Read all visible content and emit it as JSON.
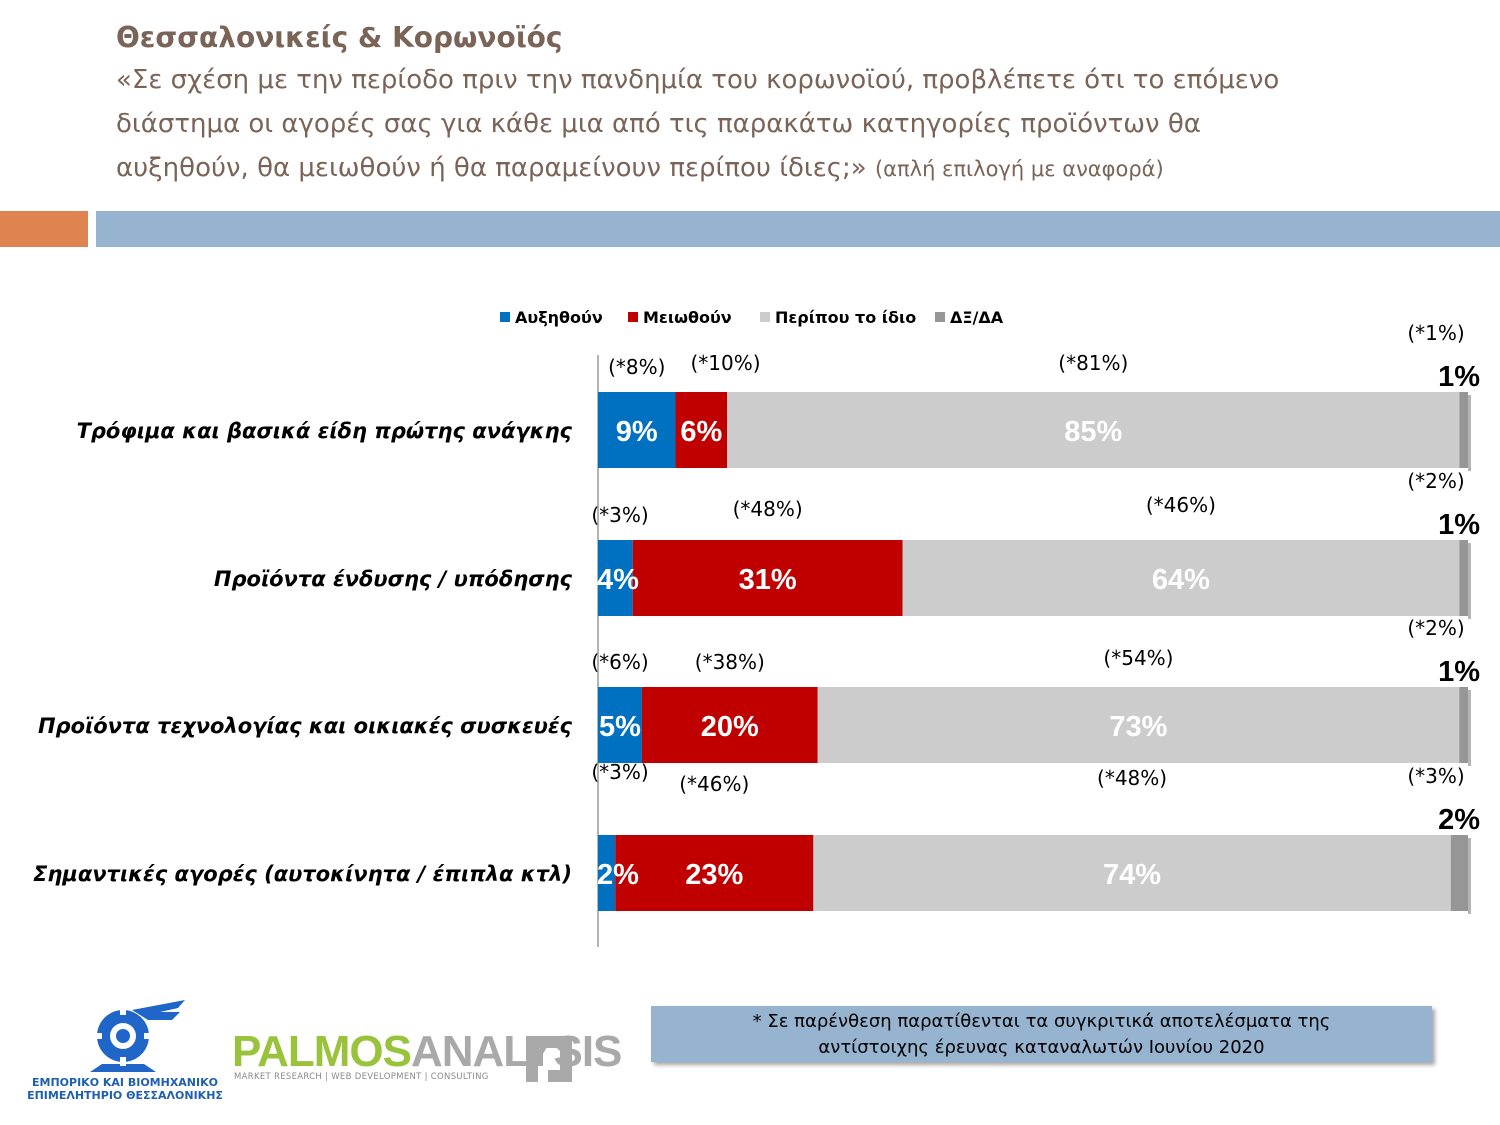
{
  "header": {
    "title": "Θεσσαλονικείς & Κορωνοϊός",
    "question_lines": [
      "«Σε σχέση με την περίοδο πριν την πανδημία του κορωνοϊού, προβλέπετε ότι το επόμενο",
      "διάστημα οι αγορές σας για κάθε μια από τις παρακάτω κατηγορίες προϊόντων θα",
      "αυξηθούν, θα μειωθούν ή θα παραμείνουν περίπου ίδιες;»"
    ],
    "question_note": "(απλή επιλογή με αναφορά)"
  },
  "chart_data": {
    "type": "bar",
    "orientation": "horizontal",
    "stacked": true,
    "legend_position": "top",
    "xlim": [
      0,
      100
    ],
    "categories": [
      "Τρόφιμα και βασικά είδη πρώτης ανάγκης",
      "Προϊόντα ένδυσης / υπόδησης",
      "Προϊόντα τεχνολογίας και οικιακές συσκευές",
      "Σημαντικές αγορές (αυτοκίνητα / έπιπλα κτλ)"
    ],
    "series": [
      {
        "name": "Αυξηθούν",
        "color": "#0070c0",
        "label_color": "#ffffff",
        "values": [
          9,
          4,
          5,
          2
        ],
        "labels": [
          "9%",
          "4%",
          "5%",
          "2%"
        ],
        "comparison": [
          "(*8%)",
          "(*3%)",
          "(*6%)",
          "(*3%)"
        ]
      },
      {
        "name": "Μειωθούν",
        "color": "#c00000",
        "label_color": "#ffffff",
        "values": [
          6,
          31,
          20,
          23
        ],
        "labels": [
          "6%",
          "31%",
          "20%",
          "23%"
        ],
        "comparison": [
          "(*10%)",
          "(*48%)",
          "(*38%)",
          "(*46%)"
        ]
      },
      {
        "name": "Περίπου το ίδιο",
        "color": "#cccccc",
        "label_color": "#ffffff",
        "values": [
          85,
          64,
          73,
          74
        ],
        "labels": [
          "85%",
          "64%",
          "73%",
          "74%"
        ],
        "comparison": [
          "(*81%)",
          "(*46%)",
          "(*54%)",
          "(*48%)"
        ]
      },
      {
        "name": "ΔΞ/ΔΑ",
        "color": "#969696",
        "label_color": "#000000",
        "values": [
          1,
          1,
          1,
          2
        ],
        "labels": [
          "1%",
          "1%",
          "1%",
          "2%"
        ],
        "comparison": [
          "(*1%)",
          "(*2%)",
          "(*2%)",
          "(*3%)"
        ]
      }
    ]
  },
  "footer": {
    "note_lines": [
      "* Σε παρένθεση παρατίθενται τα συγκριτικά αποτελέσματα της",
      "αντίστοιχης έρευνας καταναλωτών Ιουνίου 2020"
    ],
    "chamber_lines": [
      "ΕΜΠΟΡΙΚΟ ΚΑΙ ΒΙΟΜΗΧΑΝΙΚΟ",
      "ΕΠΙΜΕΛΗΤΗΡΙΟ ΘΕΣΣΑΛΟΝΙΚΗΣ"
    ],
    "palmos_word_a": "PALMOS",
    "palmos_word_b": "ANALYSIS",
    "palmos_tagline": "MARKET RESEARCH | WEB DEVELOPMENT | CONSULTING"
  }
}
